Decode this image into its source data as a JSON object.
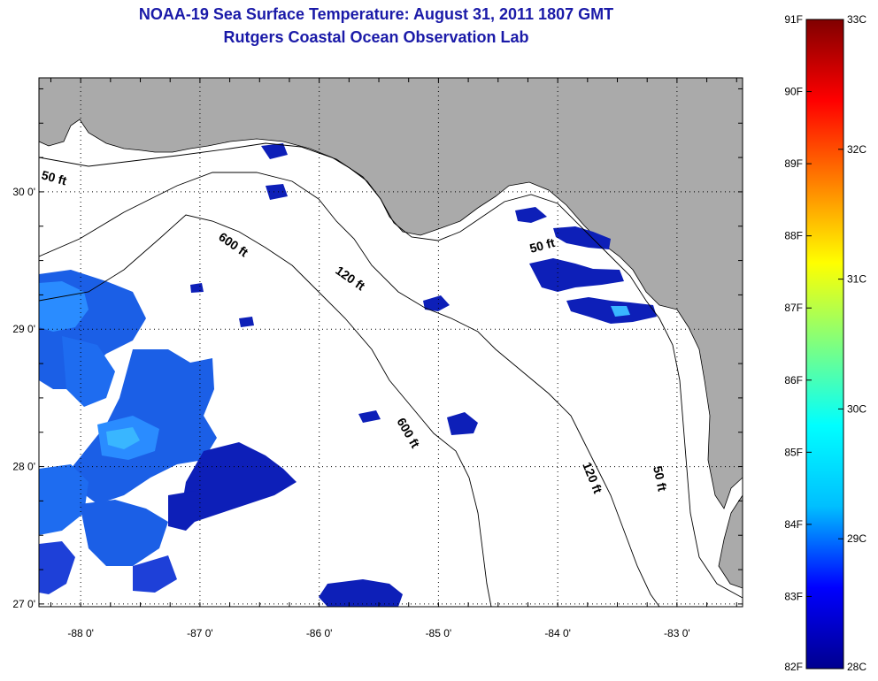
{
  "title": "NOAA-19 Sea Surface Temperature:  August 31, 2011 1807 GMT",
  "subtitle": "Rutgers Coastal Ocean Observation Lab",
  "map": {
    "lon_range": [
      -88.35,
      -82.45
    ],
    "lat_range": [
      26.98,
      30.83
    ],
    "lon_ticks": [
      {
        "value": -88,
        "label": "-88 0'"
      },
      {
        "value": -87,
        "label": "-87 0'"
      },
      {
        "value": -86,
        "label": "-86 0'"
      },
      {
        "value": -85,
        "label": "-85 0'"
      },
      {
        "value": -84,
        "label": "-84 0'"
      },
      {
        "value": -83,
        "label": "-83 0'"
      }
    ],
    "lat_ticks": [
      {
        "value": 30,
        "label": "30 0'"
      },
      {
        "value": 29,
        "label": "29 0'"
      },
      {
        "value": 28,
        "label": "28 0'"
      },
      {
        "value": 27,
        "label": "27 0'"
      }
    ],
    "depth_labels": [
      "50 ft",
      "600 ft",
      "120 ft",
      "50 ft",
      "600 ft",
      "120 ft",
      "50 ft"
    ],
    "land_color": "#aaaaaa",
    "water_color": "#ffffff"
  },
  "colorbar": {
    "fahrenheit_labels": [
      "91F",
      "90F",
      "89F",
      "88F",
      "87F",
      "86F",
      "85F",
      "84F",
      "83F",
      "82F"
    ],
    "celsius_labels": [
      "33C",
      "32C",
      "31C",
      "30C",
      "29C",
      "28C"
    ],
    "range_c": [
      28,
      33
    ],
    "colors": [
      "#00008f",
      "#0000ff",
      "#00bfff",
      "#00ffff",
      "#7fff7f",
      "#ffff00",
      "#ff7f00",
      "#ff0000",
      "#800000"
    ]
  }
}
